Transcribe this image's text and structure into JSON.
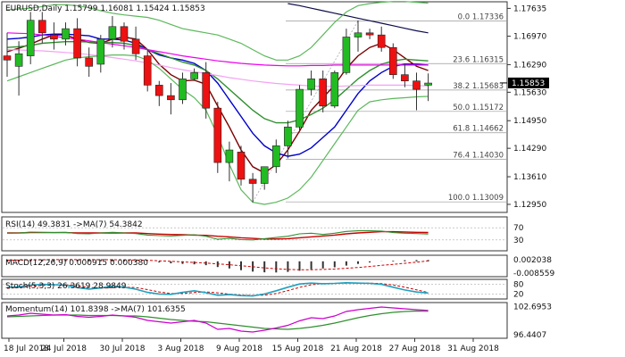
{
  "chart_data": {
    "type": "candlestick",
    "main": {
      "header": "EURUSD,Daily  1.15799 1.16081 1.15424 1.15853",
      "ylim": [
        1.128,
        1.1775
      ],
      "y_ticks": [
        "1.17635",
        "1.16970",
        "1.16290",
        "1.15630",
        "1.14950",
        "1.14290",
        "1.13610",
        "1.12950"
      ],
      "current_price": "1.15853",
      "candles": [
        {
          "o": 1.165,
          "h": 1.1705,
          "l": 1.16,
          "c": 1.164
        },
        {
          "o": 1.1625,
          "h": 1.1685,
          "l": 1.1555,
          "c": 1.1655
        },
        {
          "o": 1.165,
          "h": 1.1755,
          "l": 1.163,
          "c": 1.1735
        },
        {
          "o": 1.1735,
          "h": 1.1755,
          "l": 1.168,
          "c": 1.1705
        },
        {
          "o": 1.17,
          "h": 1.173,
          "l": 1.1665,
          "c": 1.169
        },
        {
          "o": 1.169,
          "h": 1.173,
          "l": 1.1675,
          "c": 1.1715
        },
        {
          "o": 1.1715,
          "h": 1.174,
          "l": 1.1625,
          "c": 1.1645
        },
        {
          "o": 1.1645,
          "h": 1.167,
          "l": 1.16,
          "c": 1.1625
        },
        {
          "o": 1.163,
          "h": 1.17,
          "l": 1.161,
          "c": 1.169
        },
        {
          "o": 1.169,
          "h": 1.1745,
          "l": 1.167,
          "c": 1.172
        },
        {
          "o": 1.172,
          "h": 1.173,
          "l": 1.1665,
          "c": 1.1685
        },
        {
          "o": 1.169,
          "h": 1.172,
          "l": 1.164,
          "c": 1.1655
        },
        {
          "o": 1.165,
          "h": 1.1665,
          "l": 1.1565,
          "c": 1.158
        },
        {
          "o": 1.158,
          "h": 1.159,
          "l": 1.153,
          "c": 1.1555
        },
        {
          "o": 1.1555,
          "h": 1.1585,
          "l": 1.151,
          "c": 1.1545
        },
        {
          "o": 1.1545,
          "h": 1.161,
          "l": 1.1535,
          "c": 1.1595
        },
        {
          "o": 1.1595,
          "h": 1.162,
          "l": 1.159,
          "c": 1.161
        },
        {
          "o": 1.161,
          "h": 1.1635,
          "l": 1.15,
          "c": 1.1525
        },
        {
          "o": 1.1525,
          "h": 1.154,
          "l": 1.137,
          "c": 1.1395
        },
        {
          "o": 1.1395,
          "h": 1.1445,
          "l": 1.135,
          "c": 1.1425
        },
        {
          "o": 1.142,
          "h": 1.1435,
          "l": 1.134,
          "c": 1.1355
        },
        {
          "o": 1.1355,
          "h": 1.137,
          "l": 1.13,
          "c": 1.1345
        },
        {
          "o": 1.1345,
          "h": 1.1385,
          "l": 1.133,
          "c": 1.1385
        },
        {
          "o": 1.1385,
          "h": 1.145,
          "l": 1.137,
          "c": 1.1435
        },
        {
          "o": 1.1435,
          "h": 1.1495,
          "l": 1.1405,
          "c": 1.148
        },
        {
          "o": 1.148,
          "h": 1.158,
          "l": 1.147,
          "c": 1.157
        },
        {
          "o": 1.157,
          "h": 1.1615,
          "l": 1.1555,
          "c": 1.1595
        },
        {
          "o": 1.1595,
          "h": 1.1615,
          "l": 1.1515,
          "c": 1.153
        },
        {
          "o": 1.153,
          "h": 1.1615,
          "l": 1.1525,
          "c": 1.161
        },
        {
          "o": 1.161,
          "h": 1.1715,
          "l": 1.1605,
          "c": 1.1695
        },
        {
          "o": 1.1695,
          "h": 1.1735,
          "l": 1.166,
          "c": 1.1705
        },
        {
          "o": 1.1705,
          "h": 1.1715,
          "l": 1.169,
          "c": 1.17
        },
        {
          "o": 1.17,
          "h": 1.172,
          "l": 1.166,
          "c": 1.167
        },
        {
          "o": 1.167,
          "h": 1.168,
          "l": 1.1595,
          "c": 1.1605
        },
        {
          "o": 1.1605,
          "h": 1.163,
          "l": 1.1575,
          "c": 1.159
        },
        {
          "o": 1.159,
          "h": 1.161,
          "l": 1.152,
          "c": 1.157
        },
        {
          "o": 1.158,
          "h": 1.1608,
          "l": 1.1542,
          "c": 1.1585
        }
      ],
      "moving_averages": [
        {
          "color": "#7b0000",
          "values": [
            1.166,
            1.1668,
            1.1678,
            1.169,
            1.17,
            1.17,
            1.169,
            1.1682,
            1.168,
            1.169,
            1.1695,
            1.169,
            1.1665,
            1.163,
            1.1605,
            1.159,
            1.1592,
            1.1582,
            1.153,
            1.148,
            1.1425,
            1.1385,
            1.137,
            1.139,
            1.1425,
            1.147,
            1.152,
            1.155,
            1.158,
            1.162,
            1.165,
            1.167,
            1.168,
            1.1665,
            1.1645,
            1.1625,
            1.1615
          ]
        },
        {
          "color": "#0000cc",
          "values": [
            1.169,
            1.1692,
            1.1695,
            1.17,
            1.1702,
            1.1702,
            1.17,
            1.1698,
            1.169,
            1.169,
            1.1688,
            1.168,
            1.1665,
            1.1652,
            1.1645,
            1.164,
            1.1632,
            1.1615,
            1.1585,
            1.1545,
            1.1505,
            1.1465,
            1.1435,
            1.1418,
            1.141,
            1.1415,
            1.143,
            1.1455,
            1.148,
            1.152,
            1.156,
            1.159,
            1.161,
            1.1625,
            1.163,
            1.163,
            1.1628
          ]
        },
        {
          "color": "#2f8f2f",
          "values": [
            1.167,
            1.1672,
            1.1675,
            1.168,
            1.1682,
            1.1684,
            1.1684,
            1.1683,
            1.1682,
            1.1682,
            1.168,
            1.1675,
            1.1665,
            1.1655,
            1.1645,
            1.1635,
            1.1628,
            1.1615,
            1.1595,
            1.157,
            1.1545,
            1.152,
            1.15,
            1.149,
            1.149,
            1.1497,
            1.151,
            1.1525,
            1.1545,
            1.157,
            1.1595,
            1.1615,
            1.163,
            1.1638,
            1.1642,
            1.164,
            1.1638
          ]
        },
        {
          "color": "#ee00ee",
          "values": [
            1.1705,
            1.1704,
            1.1703,
            1.17,
            1.1697,
            1.1693,
            1.169,
            1.1686,
            1.1682,
            1.1678,
            1.1674,
            1.167,
            1.1665,
            1.166,
            1.1655,
            1.165,
            1.1646,
            1.1642,
            1.1638,
            1.1635,
            1.1632,
            1.163,
            1.1628,
            1.1627,
            1.1626,
            1.1626,
            1.1627,
            1.1627,
            1.1628,
            1.1628,
            1.1628,
            1.1628,
            1.1628,
            1.1628,
            1.1628,
            1.1628,
            1.1628
          ]
        },
        {
          "color": "#f3a3f3",
          "values": [
            1.1665,
            1.1664,
            1.1663,
            1.1662,
            1.166,
            1.1658,
            1.1656,
            1.1653,
            1.165,
            1.1646,
            1.1642,
            1.1638,
            1.1633,
            1.1628,
            1.1622,
            1.1617,
            1.1612,
            1.1608,
            1.1603,
            1.1598,
            1.1594,
            1.159,
            1.1587,
            1.1584,
            1.1582,
            1.158,
            1.1578,
            1.1577,
            1.1577,
            1.1578,
            1.1579,
            1.158,
            1.158,
            1.158,
            1.158,
            1.1579,
            1.1578
          ]
        },
        {
          "color": "#0b0b4a",
          "values": [
            null,
            null,
            null,
            null,
            null,
            null,
            null,
            null,
            null,
            null,
            null,
            null,
            null,
            null,
            null,
            null,
            null,
            null,
            null,
            null,
            null,
            null,
            null,
            null,
            1.1775,
            1.177,
            1.1764,
            1.1758,
            1.1752,
            1.1746,
            1.174,
            1.1734,
            1.1728,
            1.1722,
            1.1716,
            1.171,
            1.1705
          ]
        },
        {
          "color": "#5cb85c",
          "values": [
            1.159,
            1.16,
            1.161,
            1.162,
            1.163,
            1.164,
            1.1645,
            1.1648,
            1.165,
            1.1652,
            1.1652,
            1.165,
            1.164,
            1.162,
            1.1595,
            1.157,
            1.155,
            1.152,
            1.146,
            1.139,
            1.133,
            1.13,
            1.1295,
            1.13,
            1.131,
            1.133,
            1.136,
            1.14,
            1.144,
            1.148,
            1.152,
            1.154,
            1.1545,
            1.1548,
            1.155,
            1.1552,
            1.1553
          ]
        },
        {
          "color": "#5cb85c",
          "values": [
            1.176,
            1.1762,
            1.1764,
            1.1768,
            1.1772,
            1.1772,
            1.177,
            1.1765,
            1.1758,
            1.1752,
            1.1748,
            1.1745,
            1.1742,
            1.1735,
            1.1725,
            1.1715,
            1.171,
            1.1705,
            1.17,
            1.169,
            1.168,
            1.1665,
            1.165,
            1.164,
            1.164,
            1.165,
            1.167,
            1.17,
            1.173,
            1.1755,
            1.177,
            1.1775,
            1.1778,
            1.178,
            1.178,
            1.1778,
            1.1776
          ]
        }
      ],
      "fib_levels": [
        {
          "label": "0.0  1.17336",
          "price": 1.17336
        },
        {
          "label": "23.6  1.16315",
          "price": 1.16315
        },
        {
          "label": "38.2  1.15683",
          "price": 1.15683
        },
        {
          "label": "50.0  1.15172",
          "price": 1.15172
        },
        {
          "label": "61.8  1.14662",
          "price": 1.14662
        },
        {
          "label": "76.4  1.14030",
          "price": 1.1403
        },
        {
          "label": "100.0  1.13009",
          "price": 1.13009
        }
      ]
    },
    "rsi": {
      "header": "RSI(14) 49.3831  ->MA(7) 54.3842",
      "ylim": [
        0,
        100
      ],
      "y_ticks": [
        "70",
        "30"
      ],
      "rsi": [
        52,
        53,
        56,
        55,
        54,
        55,
        51,
        50,
        53,
        55,
        53,
        51,
        46,
        44,
        43,
        45,
        47,
        42,
        32,
        35,
        31,
        30,
        34,
        38,
        42,
        50,
        52,
        48,
        52,
        58,
        60,
        60,
        59,
        54,
        52,
        51,
        49.38
      ],
      "ma": [
        53,
        53,
        54,
        54,
        54,
        54,
        53,
        53,
        53,
        53,
        53,
        53,
        51,
        49,
        48,
        47,
        46,
        45,
        42,
        40,
        37,
        35,
        33,
        33,
        34,
        37,
        40,
        43,
        46,
        50,
        53,
        55,
        57,
        57,
        56,
        55,
        54.38
      ]
    },
    "macd": {
      "header": "MACD(12,26,9) 0.000915 0.000380",
      "y_ticks": [
        "0.002038",
        "-0.008559"
      ],
      "ylim": [
        -0.0095,
        0.003
      ],
      "hist": [
        0.001,
        0.001,
        0.0012,
        0.0013,
        0.0014,
        0.0014,
        0.0012,
        0.001,
        0.0009,
        0.0009,
        0.0008,
        0.0006,
        0.0,
        -0.0008,
        -0.0014,
        -0.0018,
        -0.0021,
        -0.0027,
        -0.004,
        -0.005,
        -0.0062,
        -0.0072,
        -0.0077,
        -0.0078,
        -0.0074,
        -0.0066,
        -0.0056,
        -0.005,
        -0.0042,
        -0.003,
        -0.0018,
        -0.0008,
        0.0001,
        0.0005,
        0.0008,
        0.0009,
        0.000915
      ],
      "signal": [
        0.0008,
        0.0009,
        0.001,
        0.0011,
        0.0012,
        0.0012,
        0.0012,
        0.0012,
        0.0011,
        0.0011,
        0.001,
        0.0009,
        0.0007,
        0.0004,
        0.0,
        -0.0004,
        -0.0008,
        -0.0012,
        -0.0018,
        -0.0024,
        -0.0031,
        -0.0038,
        -0.0046,
        -0.0052,
        -0.0057,
        -0.0059,
        -0.0059,
        -0.0057,
        -0.0054,
        -0.0049,
        -0.0043,
        -0.0036,
        -0.0028,
        -0.0021,
        -0.0014,
        -0.0006,
        0.00038
      ]
    },
    "stoch": {
      "header": "Stoch(5,3,3) 26.3619 28.9849",
      "y_ticks": [
        "80",
        "20"
      ],
      "ylim": [
        0,
        100
      ],
      "k": [
        60,
        65,
        75,
        80,
        78,
        74,
        60,
        50,
        58,
        68,
        62,
        50,
        30,
        20,
        18,
        30,
        40,
        28,
        12,
        16,
        10,
        8,
        20,
        40,
        62,
        82,
        88,
        84,
        86,
        90,
        88,
        86,
        80,
        62,
        45,
        32,
        26.36
      ],
      "d": [
        55,
        60,
        67,
        73,
        78,
        77,
        70,
        61,
        56,
        59,
        63,
        60,
        47,
        33,
        23,
        23,
        29,
        33,
        27,
        19,
        13,
        11,
        13,
        23,
        41,
        61,
        77,
        85,
        86,
        87,
        88,
        88,
        85,
        76,
        62,
        46,
        28.98
      ]
    },
    "momentum": {
      "header": "Momentum(14) 101.8398  ->MA(7) 101.6355",
      "y_ticks": [
        "102.6953",
        "96.4407"
      ],
      "ylim": [
        96.0,
        103.2
      ],
      "mom": [
        100.6,
        100.8,
        101.2,
        101.0,
        100.8,
        100.9,
        100.5,
        100.3,
        100.5,
        100.8,
        100.6,
        100.3,
        99.6,
        99.3,
        99.0,
        99.3,
        99.6,
        99.0,
        97.6,
        97.8,
        97.2,
        97.0,
        97.4,
        97.9,
        98.5,
        99.5,
        100.2,
        100.0,
        100.6,
        101.6,
        102.0,
        102.3,
        102.6,
        102.4,
        102.2,
        102.0,
        101.84
      ],
      "ma": [
        100.4,
        100.5,
        100.6,
        100.7,
        100.8,
        100.8,
        100.8,
        100.7,
        100.7,
        100.7,
        100.6,
        100.6,
        100.4,
        100.1,
        99.8,
        99.6,
        99.4,
        99.3,
        99.0,
        98.7,
        98.4,
        98.1,
        97.8,
        97.7,
        97.6,
        97.8,
        98.1,
        98.5,
        99.0,
        99.6,
        100.2,
        100.7,
        101.1,
        101.4,
        101.6,
        101.7,
        101.64
      ]
    },
    "x_labels": [
      {
        "i": 0,
        "label": "18 Jul 2018"
      },
      {
        "i": 5,
        "label": "24 Jul 2018"
      },
      {
        "i": 10,
        "label": "30 Jul 2018"
      },
      {
        "i": 15,
        "label": "3 Aug 2018"
      },
      {
        "i": 20,
        "label": "9 Aug 2018"
      },
      {
        "i": 25,
        "label": "15 Aug 2018"
      },
      {
        "i": 30,
        "label": "21 Aug 2018"
      },
      {
        "i": 35,
        "label": "27 Aug 2018"
      },
      {
        "i": 40,
        "label": "31 Aug 2018"
      }
    ],
    "colors": {
      "bull": "#22bb22",
      "bear": "#ee1111",
      "frame": "#333333",
      "current": "#000000"
    }
  }
}
